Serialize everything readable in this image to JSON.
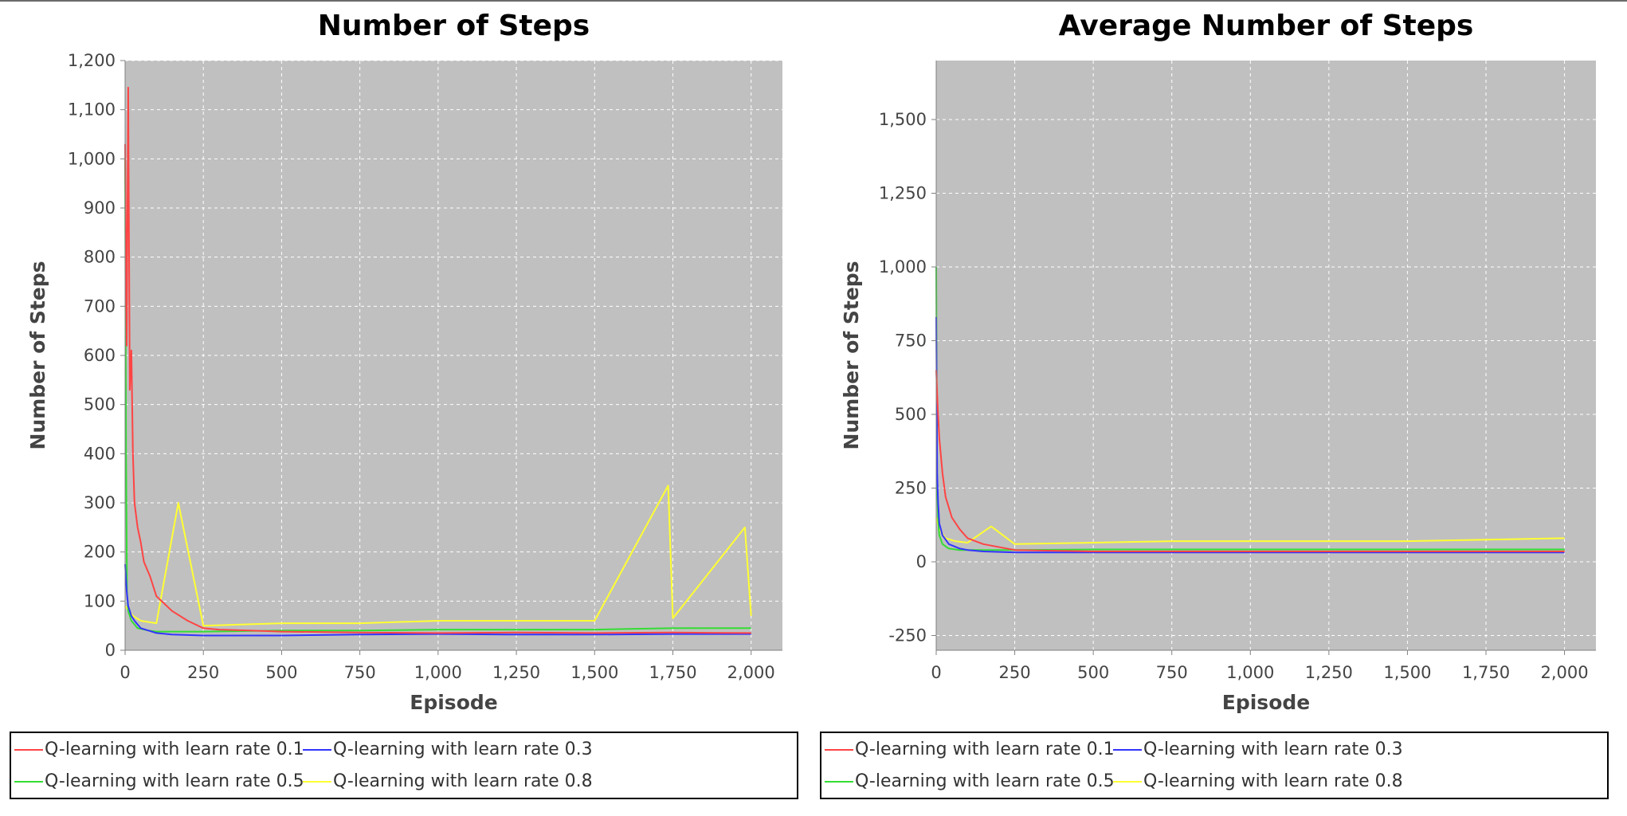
{
  "colors": {
    "plot_background": "#c0c0c0",
    "gridline": "#ffffff",
    "series_colors": [
      "#ff4444",
      "#3333ff",
      "#33dd33",
      "#ffff33"
    ]
  },
  "legend": {
    "items": [
      {
        "label": "Q-learning with learn rate 0.1",
        "color": "#ff4444"
      },
      {
        "label": "Q-learning with learn rate 0.3",
        "color": "#3333ff"
      },
      {
        "label": "Q-learning with learn rate 0.5",
        "color": "#33dd33"
      },
      {
        "label": "Q-learning with learn rate 0.8",
        "color": "#ffff33"
      }
    ]
  },
  "chart_data": [
    {
      "type": "line",
      "title": "Number of Steps",
      "xlabel": "Episode",
      "ylabel": "Number of Steps",
      "xlim": [
        0,
        2100
      ],
      "ylim": [
        0,
        1200
      ],
      "xticks": [
        0,
        250,
        500,
        750,
        1000,
        1250,
        1500,
        1750,
        2000
      ],
      "xtick_labels": [
        "0",
        "250",
        "500",
        "750",
        "1,000",
        "1,250",
        "1,500",
        "1,750",
        "2,000"
      ],
      "yticks": [
        0,
        100,
        200,
        300,
        400,
        500,
        600,
        700,
        800,
        900,
        1000,
        1100,
        1200
      ],
      "ytick_labels": [
        "0",
        "100",
        "200",
        "300",
        "400",
        "500",
        "600",
        "700",
        "800",
        "900",
        "1,000",
        "1,100",
        "1,200"
      ],
      "grid": true,
      "legend_position": "bottom",
      "series": [
        {
          "name": "Q-learning with learn rate 0.1",
          "x": [
            0,
            5,
            10,
            15,
            20,
            25,
            30,
            40,
            50,
            60,
            80,
            100,
            125,
            150,
            200,
            250,
            300,
            400,
            500,
            750,
            1000,
            1250,
            1500,
            1750,
            2000
          ],
          "y": [
            1030,
            620,
            1145,
            530,
            610,
            400,
            300,
            250,
            220,
            180,
            150,
            110,
            95,
            80,
            60,
            45,
            42,
            40,
            38,
            36,
            35,
            36,
            35,
            36,
            35
          ]
        },
        {
          "name": "Q-learning with learn rate 0.3",
          "x": [
            0,
            5,
            10,
            20,
            30,
            50,
            75,
            100,
            150,
            250,
            500,
            750,
            1000,
            1250,
            1500,
            1750,
            2000
          ],
          "y": [
            175,
            120,
            90,
            70,
            60,
            45,
            40,
            35,
            32,
            30,
            30,
            32,
            33,
            32,
            32,
            33,
            33
          ]
        },
        {
          "name": "Q-learning with learn rate 0.5",
          "x": [
            0,
            3,
            6,
            10,
            20,
            40,
            75,
            100,
            150,
            250,
            500,
            750,
            1000,
            1250,
            1500,
            1750,
            2000
          ],
          "y": [
            1000,
            400,
            120,
            80,
            60,
            45,
            40,
            38,
            38,
            38,
            40,
            40,
            42,
            42,
            42,
            45,
            45
          ]
        },
        {
          "name": "Q-learning with learn rate 0.8",
          "x": [
            0,
            25,
            50,
            100,
            170,
            250,
            500,
            750,
            1000,
            1250,
            1500,
            1735,
            1750,
            1980,
            2000
          ],
          "y": [
            90,
            70,
            60,
            55,
            300,
            50,
            55,
            55,
            60,
            60,
            60,
            335,
            65,
            250,
            70
          ]
        }
      ]
    },
    {
      "type": "line",
      "title": "Average Number of Steps",
      "xlabel": "Episode",
      "ylabel": "Number of Steps",
      "xlim": [
        0,
        2100
      ],
      "ylim": [
        -300,
        1700
      ],
      "xticks": [
        0,
        250,
        500,
        750,
        1000,
        1250,
        1500,
        1750,
        2000
      ],
      "xtick_labels": [
        "0",
        "250",
        "500",
        "750",
        "1,000",
        "1,250",
        "1,500",
        "1,750",
        "2,000"
      ],
      "yticks": [
        -250,
        0,
        250,
        500,
        750,
        1000,
        1250,
        1500
      ],
      "ytick_labels": [
        "-250",
        "0",
        "250",
        "500",
        "750",
        "1,000",
        "1,250",
        "1,500"
      ],
      "grid": true,
      "legend_position": "bottom",
      "series": [
        {
          "name": "Q-learning with learn rate 0.1",
          "x": [
            0,
            5,
            10,
            20,
            30,
            50,
            75,
            100,
            150,
            250,
            500,
            750,
            1000,
            1250,
            1500,
            1750,
            2000
          ],
          "y": [
            650,
            520,
            420,
            300,
            220,
            150,
            110,
            80,
            60,
            40,
            35,
            35,
            35,
            35,
            35,
            35,
            35
          ]
        },
        {
          "name": "Q-learning with learn rate 0.3",
          "x": [
            0,
            3,
            6,
            10,
            20,
            40,
            75,
            100,
            150,
            250,
            500,
            750,
            1000,
            1250,
            1500,
            1750,
            2000
          ],
          "y": [
            830,
            300,
            200,
            130,
            90,
            60,
            45,
            40,
            35,
            32,
            32,
            32,
            32,
            32,
            32,
            32,
            32
          ]
        },
        {
          "name": "Q-learning with learn rate 0.5",
          "x": [
            0,
            3,
            6,
            10,
            20,
            40,
            75,
            100,
            150,
            250,
            500,
            750,
            1000,
            1250,
            1500,
            1750,
            2000
          ],
          "y": [
            1000,
            250,
            140,
            90,
            60,
            45,
            40,
            40,
            40,
            40,
            42,
            42,
            42,
            42,
            42,
            42,
            42
          ]
        },
        {
          "name": "Q-learning with learn rate 0.8",
          "x": [
            0,
            10,
            30,
            60,
            100,
            175,
            250,
            500,
            750,
            1000,
            1250,
            1500,
            1750,
            2000
          ],
          "y": [
            150,
            110,
            80,
            70,
            65,
            120,
            60,
            65,
            70,
            70,
            70,
            70,
            75,
            80
          ]
        }
      ]
    }
  ]
}
